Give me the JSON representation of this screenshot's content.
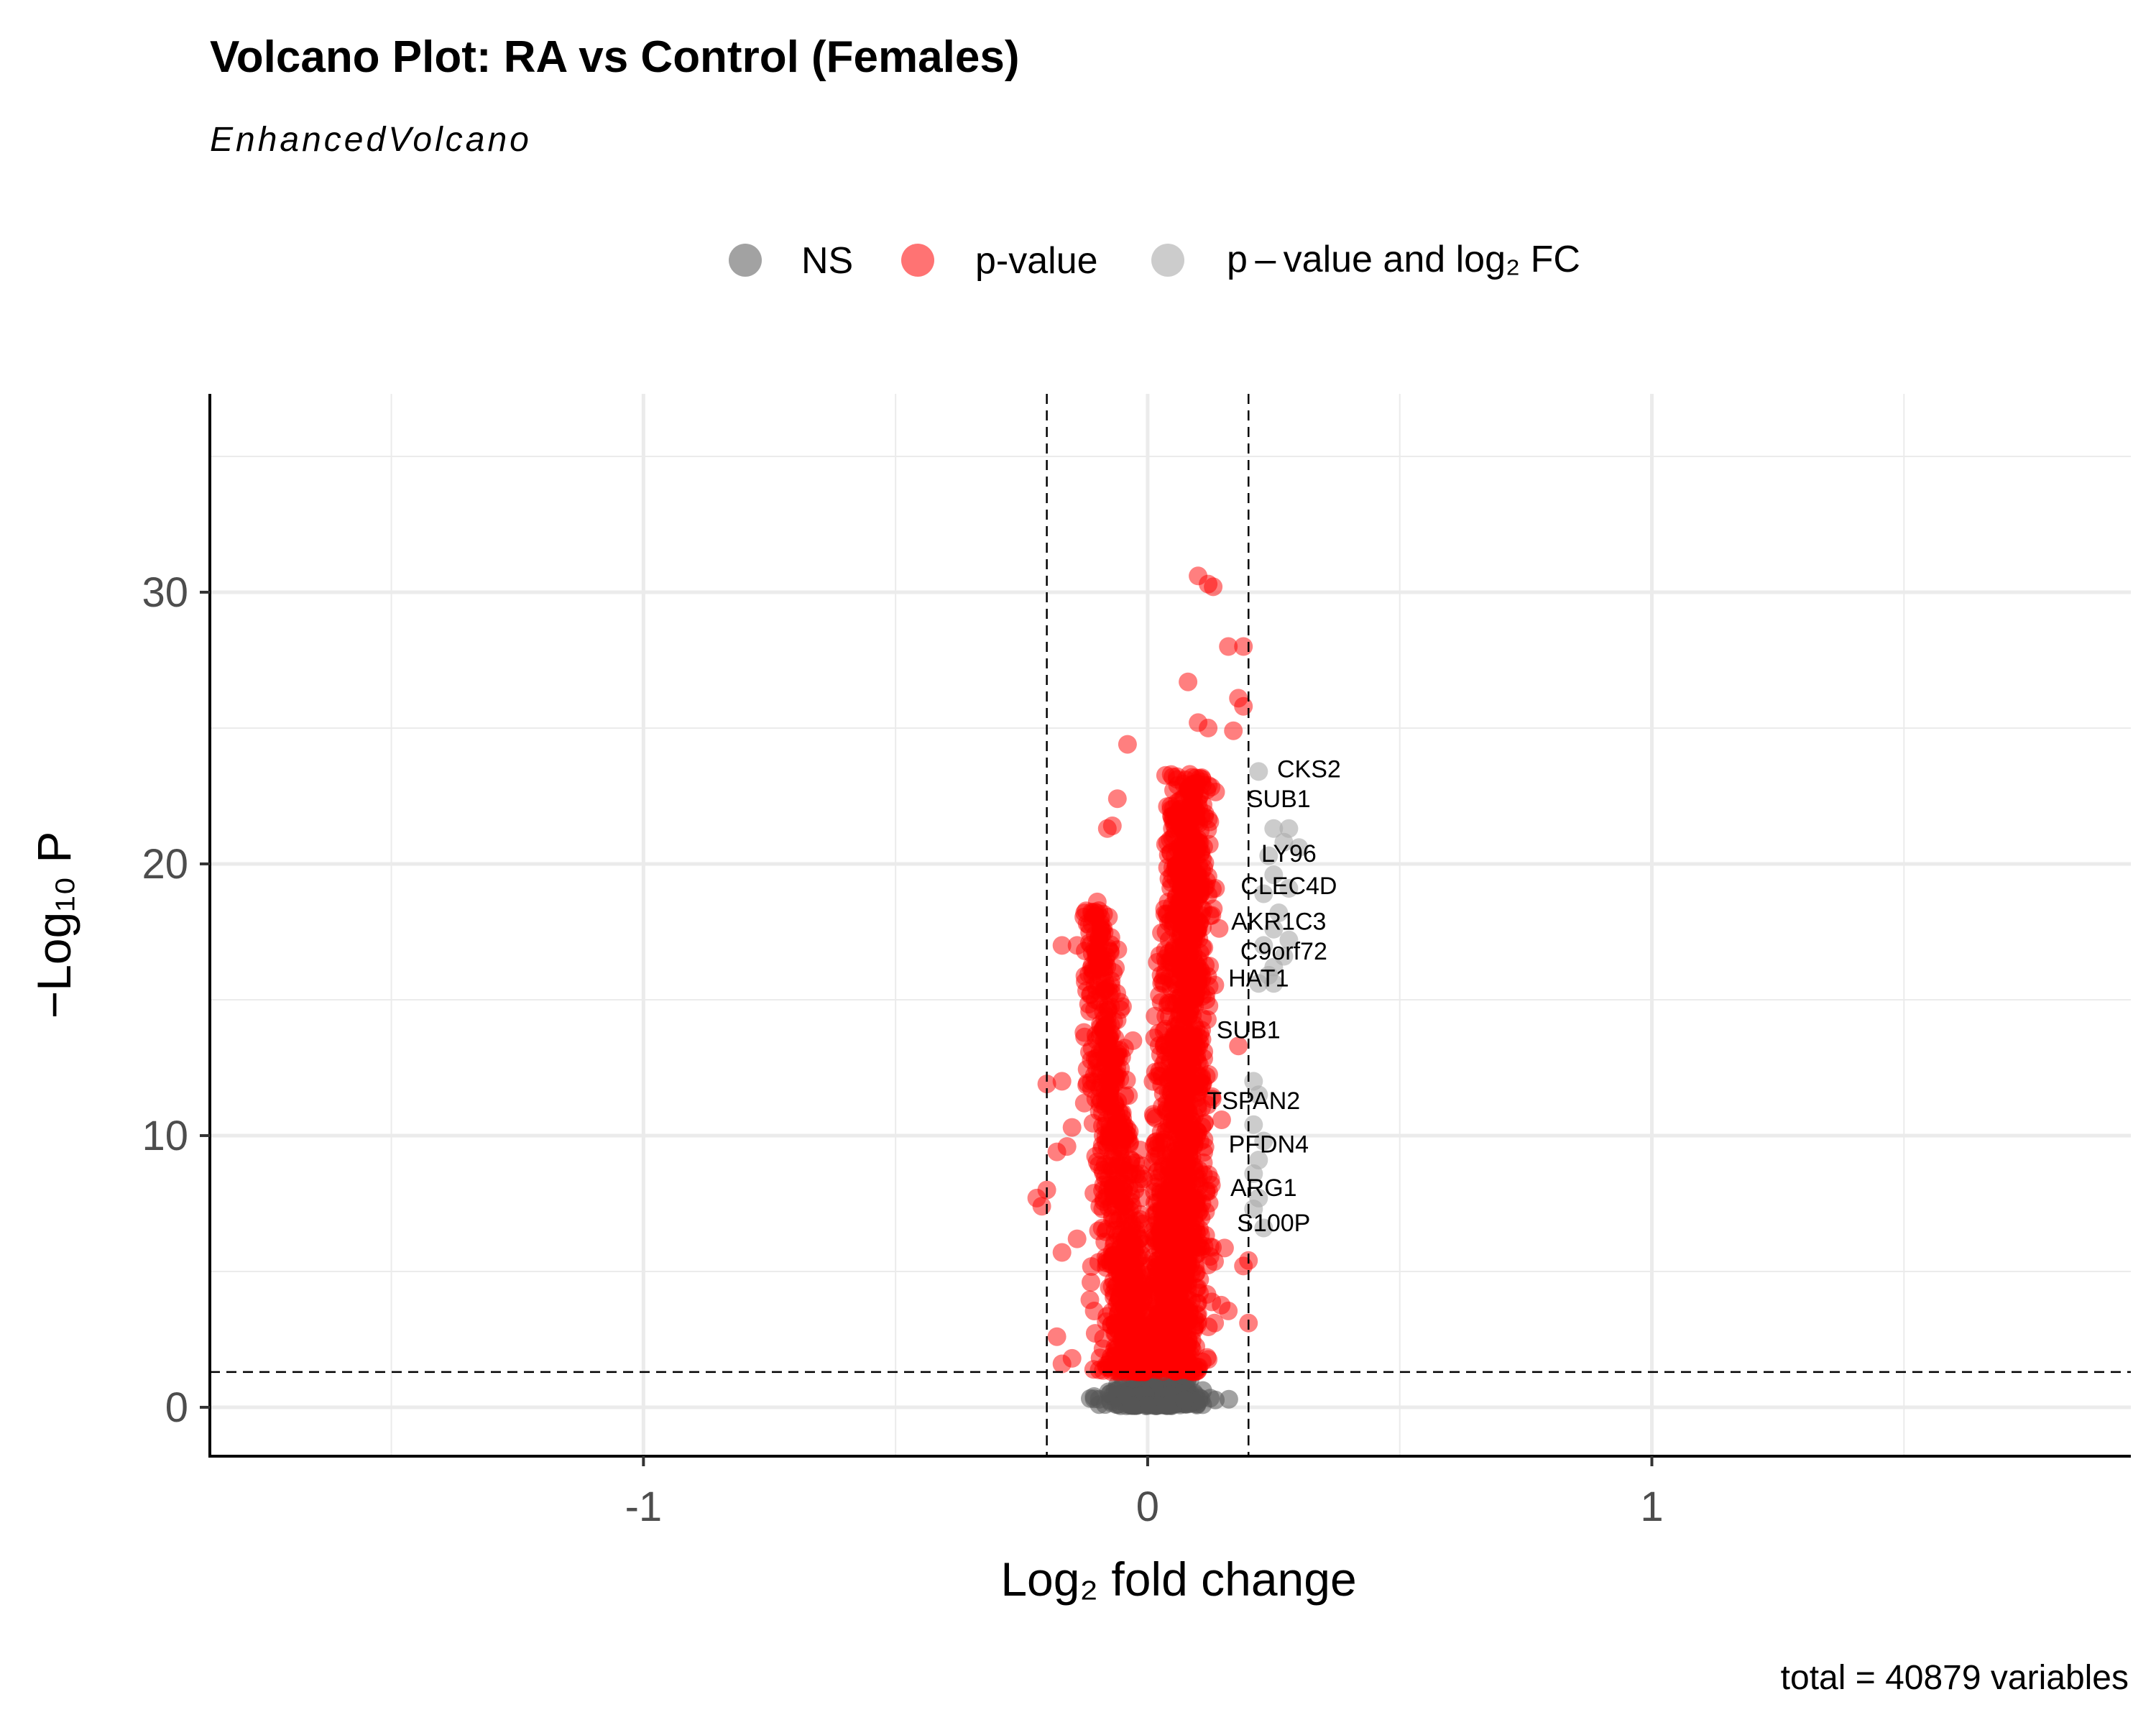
{
  "chart_data": {
    "type": "scatter",
    "title": "Volcano Plot: RA vs Control (Females)",
    "subtitle": "EnhancedVolcano",
    "caption": "total = 40879 variables",
    "xlabel": "Log₂ fold change",
    "ylabel": "−Log₁₀ P",
    "xlim": [
      -1.86,
      1.95
    ],
    "ylim": [
      -1.8,
      37.3
    ],
    "xticks": [
      -1,
      0,
      1
    ],
    "xtick_labels": [
      "-1",
      "0",
      "1"
    ],
    "yticks": [
      0,
      10,
      20,
      30
    ],
    "ytick_labels": [
      "0",
      "10",
      "20",
      "30"
    ],
    "grid": true,
    "legend_position": "top",
    "thresholds": {
      "log2fc": [
        -0.2,
        0.2
      ],
      "neg_log10_p": 1.3
    },
    "total_variables": 40879,
    "series": [
      {
        "name": "NS",
        "color": "#555555"
      },
      {
        "name": "p-value",
        "color": "#ff0000"
      },
      {
        "name": "p – value and log₂ FC",
        "color": "#aaaaaa"
      }
    ],
    "labels": [
      {
        "gene": "CKS2",
        "x": 0.32,
        "y": 23.5
      },
      {
        "gene": "SUB1",
        "x": 0.26,
        "y": 22.4
      },
      {
        "gene": "LY96",
        "x": 0.28,
        "y": 20.4
      },
      {
        "gene": "CLEC4D",
        "x": 0.28,
        "y": 19.2
      },
      {
        "gene": "AKR1C3",
        "x": 0.26,
        "y": 17.9
      },
      {
        "gene": "C9orf72",
        "x": 0.27,
        "y": 16.8
      },
      {
        "gene": "HAT1",
        "x": 0.22,
        "y": 15.8
      },
      {
        "gene": "SUB1",
        "x": 0.2,
        "y": 13.9
      },
      {
        "gene": "TSPAN2",
        "x": 0.21,
        "y": 11.3
      },
      {
        "gene": "PFDN4",
        "x": 0.24,
        "y": 9.7
      },
      {
        "gene": "ARG1",
        "x": 0.23,
        "y": 8.1
      },
      {
        "gene": "S100P",
        "x": 0.25,
        "y": 6.8
      }
    ],
    "highlight_points": {
      "pvalue_and_fc": [
        [
          0.22,
          23.4
        ],
        [
          0.25,
          21.3
        ],
        [
          0.28,
          21.3
        ],
        [
          0.27,
          20.8
        ],
        [
          0.3,
          20.6
        ],
        [
          0.24,
          20.3
        ],
        [
          0.25,
          19.6
        ],
        [
          0.28,
          19.1
        ],
        [
          0.23,
          18.9
        ],
        [
          0.26,
          18.2
        ],
        [
          0.25,
          17.6
        ],
        [
          0.28,
          17.2
        ],
        [
          0.23,
          17.0
        ],
        [
          0.27,
          16.6
        ],
        [
          0.25,
          16.2
        ],
        [
          0.24,
          15.9
        ],
        [
          0.25,
          15.6
        ],
        [
          0.22,
          15.6
        ],
        [
          0.21,
          12.0
        ],
        [
          0.22,
          11.5
        ],
        [
          0.21,
          10.4
        ],
        [
          0.23,
          9.8
        ],
        [
          0.22,
          9.1
        ],
        [
          0.21,
          8.6
        ],
        [
          0.22,
          7.7
        ],
        [
          0.21,
          7.3
        ],
        [
          0.23,
          6.6
        ]
      ],
      "pvalue_outliers": [
        [
          0.1,
          30.6
        ],
        [
          0.12,
          30.3
        ],
        [
          0.13,
          30.2
        ],
        [
          0.16,
          28.0
        ],
        [
          0.19,
          28.0
        ],
        [
          0.08,
          26.7
        ],
        [
          0.18,
          26.1
        ],
        [
          0.19,
          25.8
        ],
        [
          0.1,
          25.2
        ],
        [
          0.17,
          24.9
        ],
        [
          0.12,
          25.0
        ],
        [
          -0.04,
          24.4
        ],
        [
          -0.06,
          22.4
        ],
        [
          0.05,
          23.2
        ],
        [
          -0.07,
          21.4
        ],
        [
          -0.08,
          21.3
        ],
        [
          -0.1,
          18.6
        ],
        [
          -0.12,
          17.8
        ],
        [
          -0.14,
          17.0
        ],
        [
          -0.17,
          17.0
        ],
        [
          -0.09,
          16.5
        ],
        [
          0.18,
          13.3
        ],
        [
          -0.17,
          12.0
        ],
        [
          -0.2,
          11.9
        ],
        [
          -0.15,
          10.3
        ],
        [
          -0.16,
          9.6
        ],
        [
          -0.18,
          9.4
        ],
        [
          -0.2,
          8.0
        ],
        [
          -0.22,
          7.7
        ],
        [
          -0.21,
          7.4
        ],
        [
          -0.14,
          6.2
        ],
        [
          -0.17,
          5.7
        ],
        [
          0.2,
          5.4
        ],
        [
          0.19,
          5.2
        ],
        [
          -0.18,
          2.6
        ],
        [
          0.2,
          3.1
        ],
        [
          -0.15,
          1.8
        ],
        [
          -0.17,
          1.6
        ]
      ]
    }
  }
}
